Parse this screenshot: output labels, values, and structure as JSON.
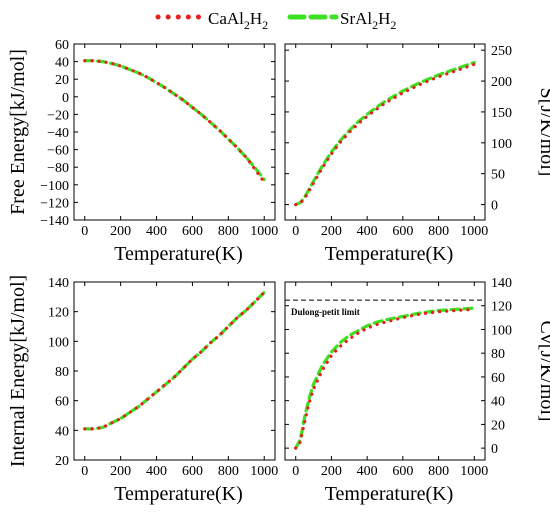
{
  "legend": [
    {
      "label_main": "CaAl",
      "sub1": "2",
      "label_mid": "H",
      "sub2": "2",
      "color": "#e8201c",
      "style": "dotted"
    },
    {
      "label_main": "SrAl",
      "sub1": "2",
      "label_mid": "H",
      "sub2": "2",
      "color": "#3ee024",
      "style": "dashed"
    }
  ],
  "chart_data": [
    {
      "type": "line",
      "xlabel": "Temperature(K)",
      "ylabel": "Free Energy[kJ/mol]",
      "xlim": [
        -60,
        1060
      ],
      "ylim": [
        -140,
        60
      ],
      "xticks": [
        0,
        200,
        400,
        600,
        800,
        1000
      ],
      "yticks": [
        60,
        40,
        20,
        0,
        -20,
        -40,
        -60,
        -80,
        -100,
        -120,
        -140
      ],
      "ytick_labels": [
        "60",
        "40",
        "20",
        "0",
        "−20",
        "−40",
        "−60",
        "−80",
        "−100",
        "−120",
        "−140"
      ],
      "yaxis_side": "left",
      "x": [
        0,
        50,
        100,
        150,
        200,
        250,
        300,
        350,
        400,
        450,
        500,
        550,
        600,
        650,
        700,
        750,
        800,
        850,
        900,
        950,
        1000
      ],
      "series": [
        {
          "name": "CaAl2H2",
          "values": [
            41,
            41,
            40,
            38,
            35,
            31,
            27,
            22,
            16,
            10,
            3,
            -4,
            -12,
            -20,
            -29,
            -38,
            -48,
            -58,
            -69,
            -83,
            -97
          ]
        },
        {
          "name": "SrAl2H2",
          "values": [
            41,
            41,
            40,
            38,
            35,
            31,
            27,
            22,
            16,
            10,
            3,
            -4,
            -12,
            -20,
            -29,
            -38,
            -48,
            -58,
            -69,
            -81,
            -94
          ]
        }
      ]
    },
    {
      "type": "line",
      "xlabel": "Temperature(K)",
      "ylabel": "S[J/K/mol]",
      "xlim": [
        -60,
        1060
      ],
      "ylim": [
        -25,
        260
      ],
      "xticks": [
        0,
        200,
        400,
        600,
        800,
        1000
      ],
      "yticks": [
        0,
        50,
        100,
        150,
        200,
        250
      ],
      "ytick_labels": [
        "0",
        "50",
        "100",
        "150",
        "200",
        "250"
      ],
      "yaxis_side": "right",
      "x": [
        0,
        25,
        50,
        100,
        150,
        200,
        250,
        300,
        350,
        400,
        450,
        500,
        600,
        700,
        800,
        900,
        1000
      ],
      "series": [
        {
          "name": "CaAl2H2",
          "values": [
            0,
            2,
            10,
            35,
            60,
            82,
            101,
            117,
            131,
            143,
            154,
            164,
            181,
            195,
            207,
            217,
            227
          ]
        },
        {
          "name": "SrAl2H2",
          "values": [
            0,
            3,
            12,
            38,
            63,
            85,
            104,
            120,
            134,
            146,
            157,
            167,
            184,
            198,
            210,
            220,
            230
          ]
        }
      ]
    },
    {
      "type": "line",
      "xlabel": "Temperature(K)",
      "ylabel": "Internal Energy[kJ/mol]",
      "xlim": [
        -60,
        1060
      ],
      "ylim": [
        20,
        140
      ],
      "xticks": [
        0,
        200,
        400,
        600,
        800,
        1000
      ],
      "yticks": [
        20,
        40,
        60,
        80,
        100,
        120,
        140
      ],
      "ytick_labels": [
        "20",
        "40",
        "60",
        "80",
        "100",
        "120",
        "140"
      ],
      "yaxis_side": "left",
      "x": [
        0,
        50,
        100,
        150,
        200,
        250,
        300,
        350,
        400,
        450,
        500,
        550,
        600,
        650,
        700,
        750,
        800,
        850,
        900,
        950,
        1000
      ],
      "series": [
        {
          "name": "CaAl2H2",
          "values": [
            41,
            41,
            42,
            45,
            48,
            52,
            56,
            61,
            66,
            71,
            76,
            82,
            88,
            93,
            99,
            104,
            110,
            116,
            121,
            127,
            133
          ]
        },
        {
          "name": "SrAl2H2",
          "values": [
            41,
            41,
            42,
            45,
            48,
            52,
            56,
            61,
            66,
            71,
            76,
            82,
            88,
            93,
            99,
            104,
            110,
            116,
            121,
            127,
            133
          ]
        }
      ]
    },
    {
      "type": "line",
      "xlabel": "Temperature(K)",
      "ylabel": "Cv[J/K/mol]",
      "xlim": [
        -60,
        1060
      ],
      "ylim": [
        -10,
        140
      ],
      "xticks": [
        0,
        200,
        400,
        600,
        800,
        1000
      ],
      "yticks": [
        0,
        20,
        40,
        60,
        80,
        100,
        120,
        140
      ],
      "ytick_labels": [
        "0",
        "20",
        "40",
        "60",
        "80",
        "100",
        "120",
        "140"
      ],
      "yaxis_side": "right",
      "reference_line": {
        "y": 124.7,
        "label": "Dulong-petit limit"
      },
      "x": [
        0,
        25,
        50,
        75,
        100,
        150,
        200,
        250,
        300,
        350,
        400,
        450,
        500,
        600,
        700,
        800,
        900,
        1000
      ],
      "series": [
        {
          "name": "CaAl2H2",
          "values": [
            0,
            5,
            22,
            38,
            50,
            66,
            78,
            86,
            92,
            97,
            101,
            104,
            106,
            110,
            113,
            115,
            116,
            117
          ]
        },
        {
          "name": "SrAl2H2",
          "values": [
            0,
            7,
            26,
            42,
            54,
            70,
            81,
            89,
            95,
            99,
            103,
            106,
            108,
            111,
            114,
            116,
            117,
            118
          ]
        }
      ]
    }
  ]
}
